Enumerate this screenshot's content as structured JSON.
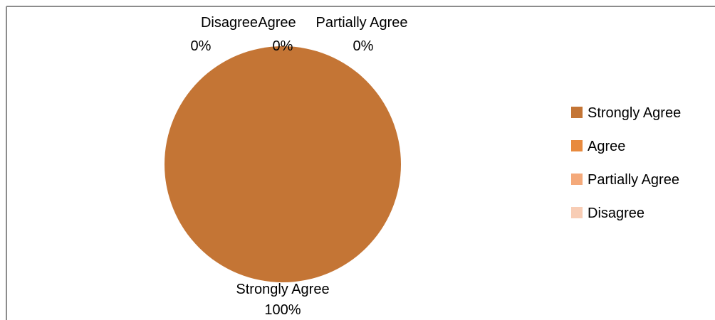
{
  "chart_data": {
    "type": "pie",
    "categories": [
      "Strongly Agree",
      "Agree",
      "Partially Agree",
      "Disagree"
    ],
    "values": [
      100,
      0,
      0,
      0
    ],
    "percent_labels": [
      "100%",
      "0%",
      "0%",
      "0%"
    ],
    "colors": [
      "#c47535",
      "#e88a3e",
      "#f4a97a",
      "#f8cdb5"
    ],
    "legend_position": "right",
    "title": ""
  }
}
